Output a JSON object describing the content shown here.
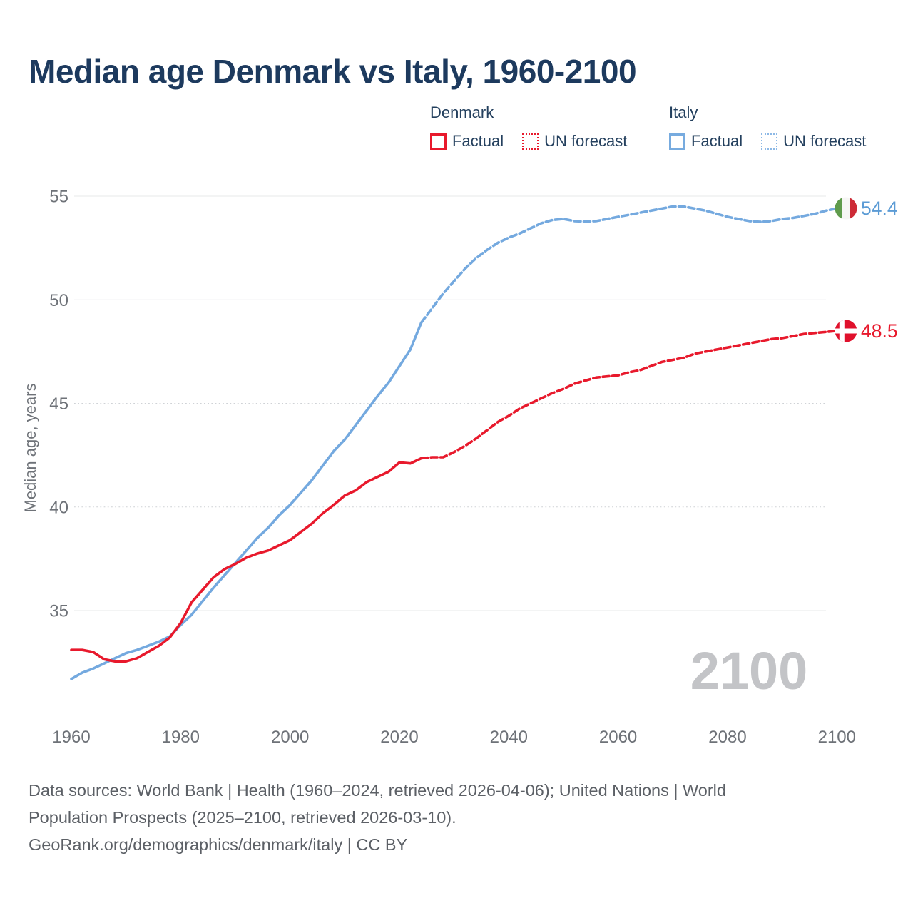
{
  "title": "Median age Denmark vs Italy, 1960-2100",
  "watermark_year": "2100",
  "colors": {
    "denmark_red": "#e8192c",
    "italy_blue": "#74a9df",
    "italy_label_blue": "#5b9bd5",
    "title_navy": "#1d3a5e",
    "axis_gray": "#6e7278",
    "watermark_gray": "#c3c4c7"
  },
  "legend": {
    "groups": [
      {
        "country": "Denmark",
        "items": [
          {
            "label": "Factual",
            "style": "solid"
          },
          {
            "label": "UN forecast",
            "style": "dotted"
          }
        ]
      },
      {
        "country": "Italy",
        "items": [
          {
            "label": "Factual",
            "style": "solid"
          },
          {
            "label": "UN forecast",
            "style": "dotted"
          }
        ]
      }
    ]
  },
  "footer": {
    "lines": [
      "Data sources: World Bank | Health (1960–2024, retrieved 2026-04-06); United Nations | World",
      "Population Prospects (2025–2100, retrieved 2026-03-10).",
      "GeoRank.org/demographics/denmark/italy | CC BY"
    ]
  },
  "chart_data": {
    "type": "line",
    "title": "Median age Denmark vs Italy, 1960-2100",
    "xlabel": "",
    "ylabel": "Median age, years",
    "xlim": [
      1960,
      2100
    ],
    "ylim": [
      31,
      56
    ],
    "grid": true,
    "forecast_split_year": 2024,
    "x_ticks": [
      "1960",
      "1980",
      "2000",
      "2020",
      "2040",
      "2060",
      "2080",
      "2100"
    ],
    "y_ticks": [
      {
        "value": 35,
        "grid": "solid"
      },
      {
        "value": 40,
        "grid": "dotted"
      },
      {
        "value": 45,
        "grid": "dotted"
      },
      {
        "value": 50,
        "grid": "solid"
      },
      {
        "value": 55,
        "grid": "solid"
      }
    ],
    "series": [
      {
        "name": "Italy — Factual",
        "country": "Italy",
        "kind": "factual",
        "color": "#74a9df",
        "dashed": false,
        "x": [
          1960,
          1962,
          1964,
          1966,
          1968,
          1970,
          1972,
          1974,
          1976,
          1978,
          1980,
          1982,
          1984,
          1986,
          1988,
          1990,
          1992,
          1994,
          1996,
          1998,
          2000,
          2002,
          2004,
          2006,
          2008,
          2010,
          2012,
          2014,
          2016,
          2018,
          2020,
          2022,
          2024
        ],
        "y": [
          31.7,
          32.0,
          32.2,
          32.45,
          32.7,
          32.95,
          33.1,
          33.3,
          33.5,
          33.75,
          34.3,
          34.8,
          35.45,
          36.1,
          36.7,
          37.3,
          37.9,
          38.5,
          39.0,
          39.6,
          40.1,
          40.7,
          41.3,
          42.0,
          42.7,
          43.25,
          43.95,
          44.65,
          45.35,
          46.0,
          46.8,
          47.6,
          48.9
        ]
      },
      {
        "name": "Italy — UN forecast",
        "country": "Italy",
        "kind": "forecast",
        "color": "#74a9df",
        "dashed": true,
        "x": [
          2024,
          2026,
          2028,
          2030,
          2032,
          2034,
          2036,
          2038,
          2040,
          2042,
          2044,
          2046,
          2048,
          2050,
          2052,
          2054,
          2056,
          2058,
          2060,
          2062,
          2064,
          2066,
          2068,
          2070,
          2072,
          2074,
          2076,
          2078,
          2080,
          2082,
          2084,
          2086,
          2088,
          2090,
          2092,
          2094,
          2096,
          2098,
          2100
        ],
        "y": [
          48.9,
          49.6,
          50.3,
          50.9,
          51.5,
          52.0,
          52.4,
          52.75,
          53.0,
          53.2,
          53.45,
          53.7,
          53.85,
          53.9,
          53.8,
          53.77,
          53.8,
          53.9,
          54.0,
          54.1,
          54.2,
          54.3,
          54.4,
          54.5,
          54.5,
          54.4,
          54.3,
          54.15,
          54.0,
          53.9,
          53.8,
          53.76,
          53.8,
          53.9,
          53.95,
          54.05,
          54.15,
          54.3,
          54.4
        ]
      },
      {
        "name": "Denmark — Factual",
        "country": "Denmark",
        "kind": "factual",
        "color": "#e8192c",
        "dashed": false,
        "x": [
          1960,
          1962,
          1964,
          1966,
          1968,
          1970,
          1972,
          1974,
          1976,
          1978,
          1980,
          1982,
          1984,
          1986,
          1988,
          1990,
          1992,
          1994,
          1996,
          1998,
          2000,
          2002,
          2004,
          2006,
          2008,
          2010,
          2012,
          2014,
          2016,
          2018,
          2020,
          2022,
          2024
        ],
        "y": [
          33.1,
          33.1,
          33.0,
          32.65,
          32.55,
          32.55,
          32.7,
          33.0,
          33.3,
          33.7,
          34.4,
          35.4,
          36.0,
          36.6,
          37.0,
          37.25,
          37.55,
          37.75,
          37.9,
          38.15,
          38.4,
          38.8,
          39.2,
          39.7,
          40.1,
          40.55,
          40.8,
          41.2,
          41.45,
          41.7,
          42.15,
          42.1,
          42.35
        ]
      },
      {
        "name": "Denmark — UN forecast",
        "country": "Denmark",
        "kind": "forecast",
        "color": "#e8192c",
        "dashed": true,
        "x": [
          2024,
          2026,
          2028,
          2030,
          2032,
          2034,
          2036,
          2038,
          2040,
          2042,
          2044,
          2046,
          2048,
          2050,
          2052,
          2054,
          2056,
          2058,
          2060,
          2062,
          2064,
          2066,
          2068,
          2070,
          2072,
          2074,
          2076,
          2078,
          2080,
          2082,
          2084,
          2086,
          2088,
          2090,
          2092,
          2094,
          2096,
          2098,
          2100
        ],
        "y": [
          42.35,
          42.4,
          42.4,
          42.65,
          42.95,
          43.3,
          43.7,
          44.1,
          44.4,
          44.75,
          45.0,
          45.25,
          45.5,
          45.7,
          45.95,
          46.1,
          46.25,
          46.3,
          46.35,
          46.5,
          46.6,
          46.8,
          47.0,
          47.1,
          47.2,
          47.4,
          47.5,
          47.6,
          47.7,
          47.8,
          47.9,
          48.0,
          48.1,
          48.15,
          48.25,
          48.35,
          48.4,
          48.45,
          48.5
        ]
      }
    ],
    "end_labels": [
      {
        "country": "Italy",
        "value": "54.4"
      },
      {
        "country": "Denmark",
        "value": "48.5"
      }
    ]
  }
}
